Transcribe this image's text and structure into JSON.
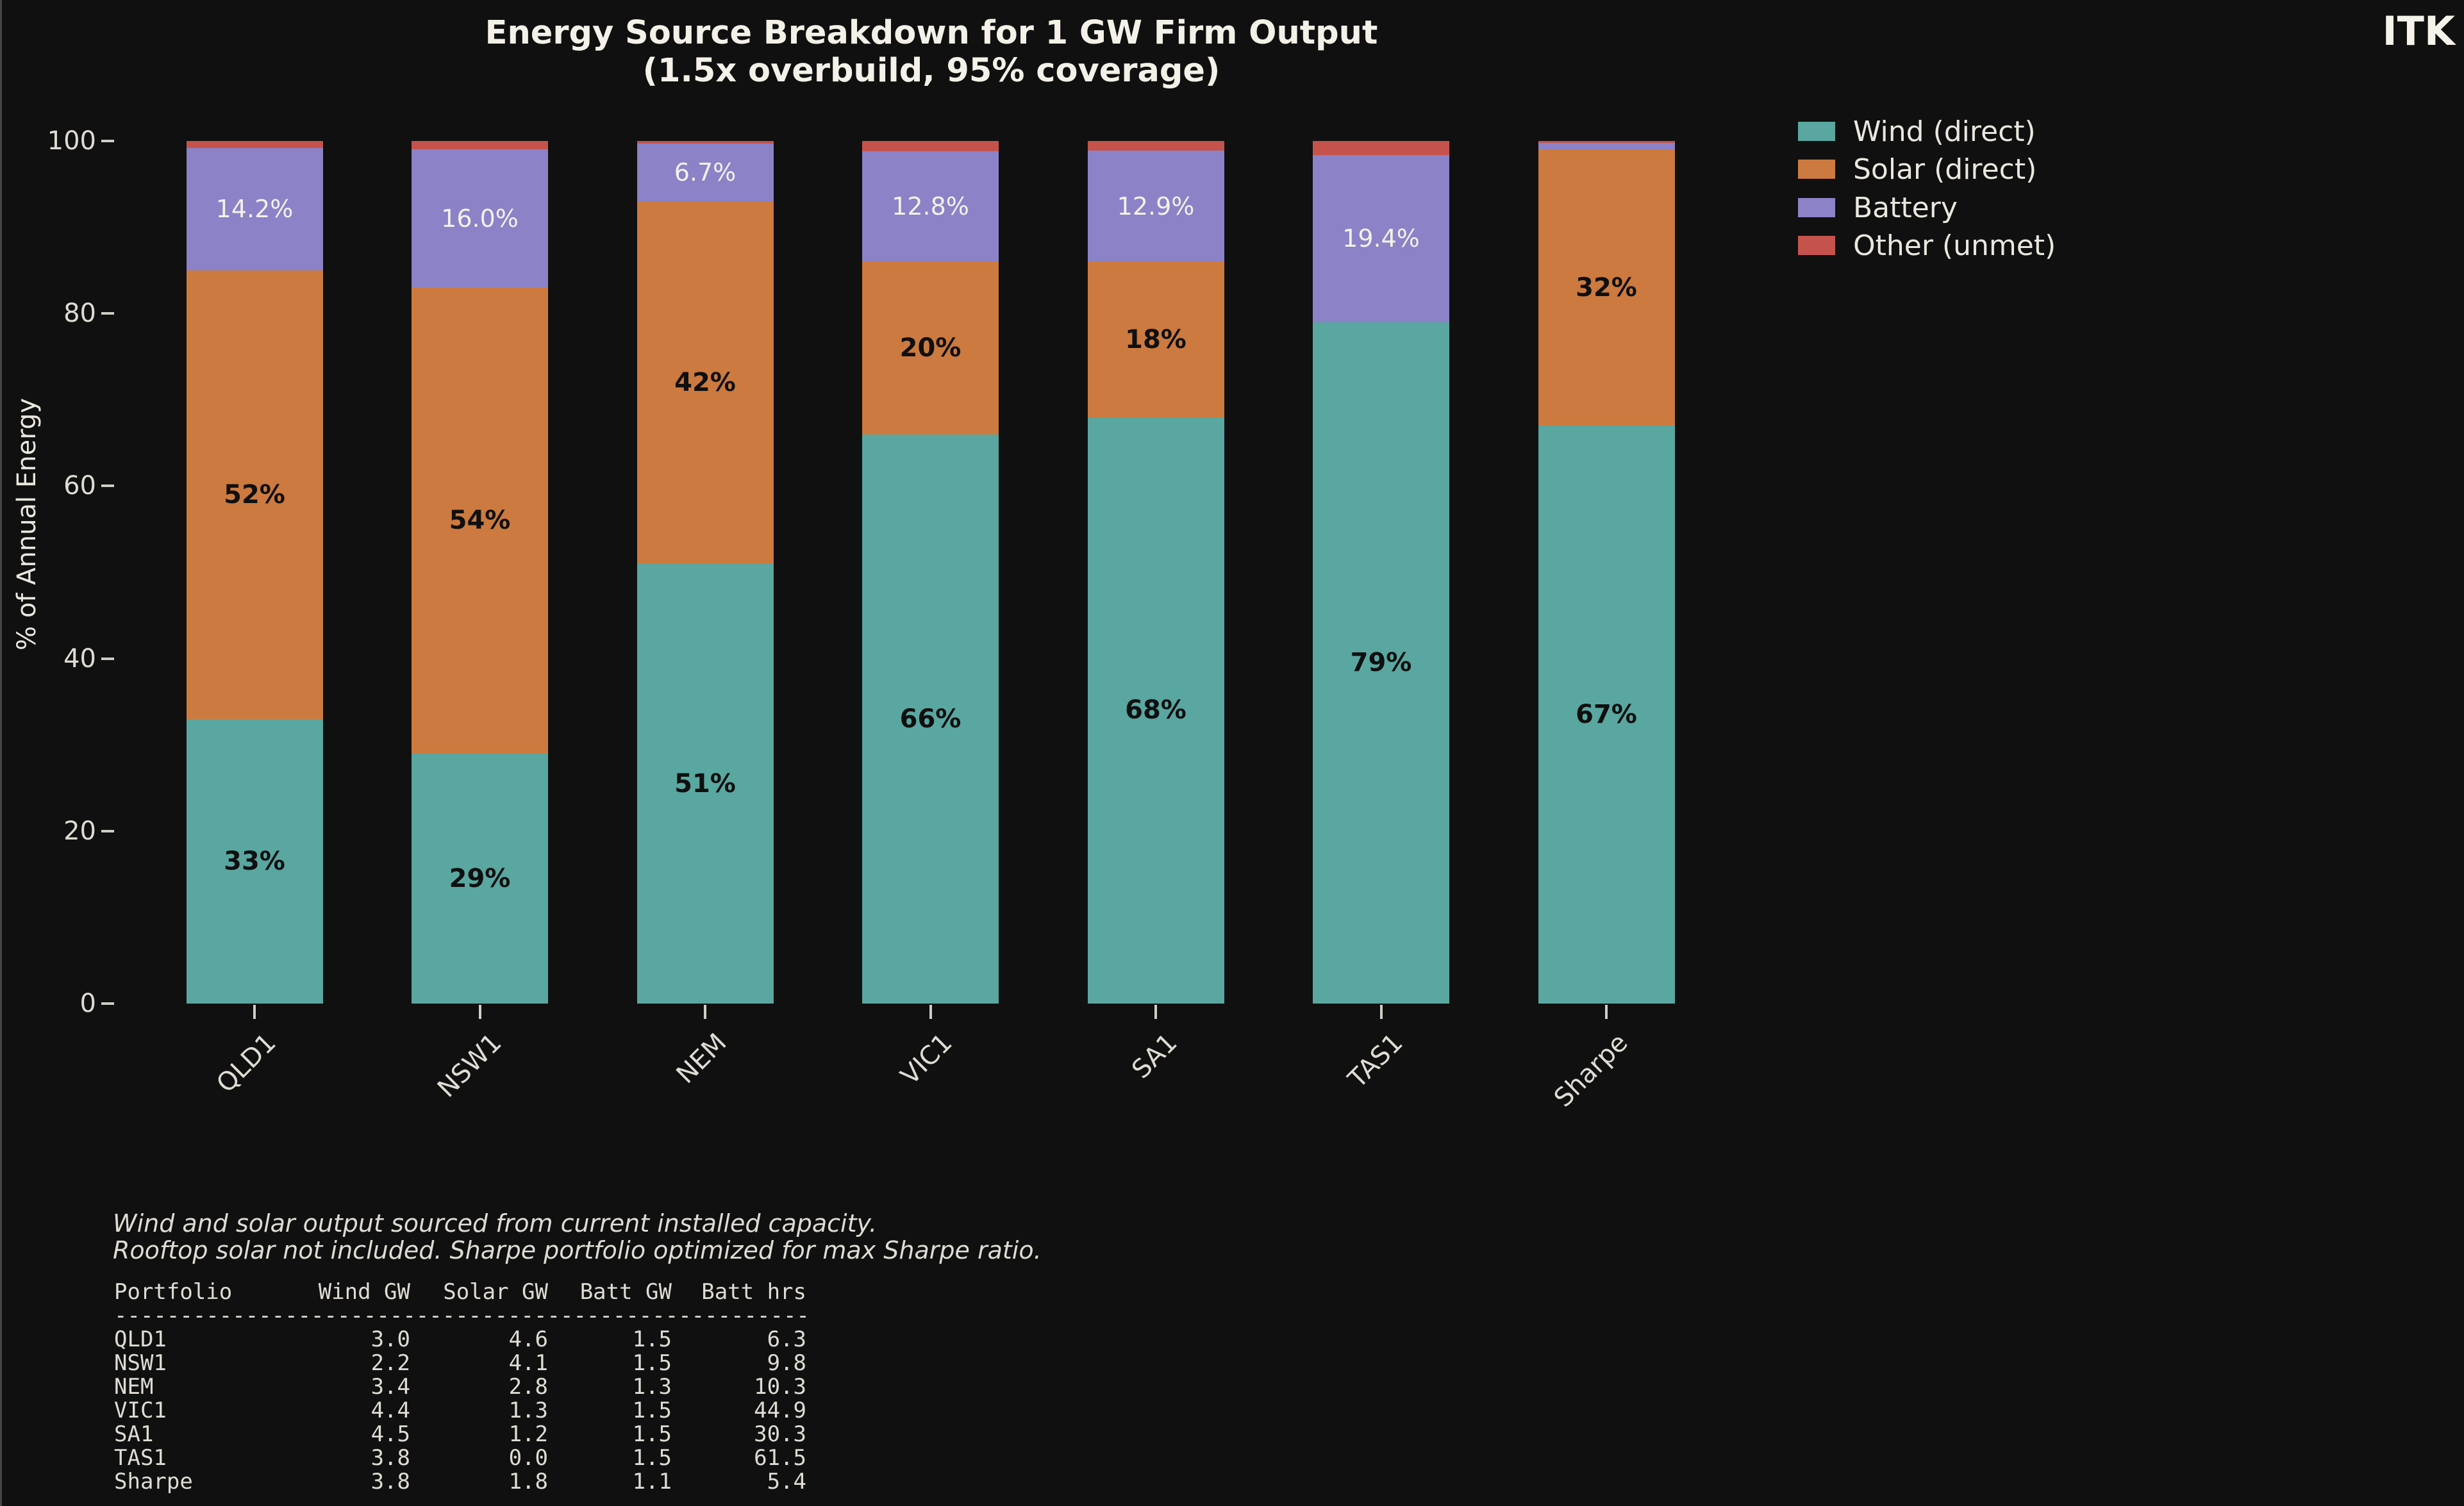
{
  "brand": {
    "logo_text": "ITK"
  },
  "chart_data": {
    "type": "bar",
    "stacked": true,
    "title": "Energy Source Breakdown for 1 GW Firm Output",
    "subtitle": "(1.5x overbuild, 95% coverage)",
    "ylabel": "% of Annual Energy",
    "ylim": [
      0,
      100
    ],
    "yticks": [
      0,
      20,
      40,
      60,
      80,
      100
    ],
    "grid": false,
    "legend_position": "upper right",
    "categories": [
      "QLD1",
      "NSW1",
      "NEM",
      "VIC1",
      "SA1",
      "TAS1",
      "Sharpe"
    ],
    "series": [
      {
        "name": "Wind (direct)",
        "color": "#59a7a0",
        "label_style": "dark-bold",
        "values": [
          33,
          29,
          51,
          66,
          68,
          79,
          67
        ],
        "labels": [
          "33%",
          "29%",
          "51%",
          "66%",
          "68%",
          "79%",
          "67%"
        ]
      },
      {
        "name": "Solar (direct)",
        "color": "#cc7a3f",
        "label_style": "dark-bold",
        "values": [
          52,
          54,
          42,
          20,
          18,
          0,
          32
        ],
        "labels": [
          "52%",
          "54%",
          "42%",
          "20%",
          "18%",
          null,
          "32%"
        ]
      },
      {
        "name": "Battery",
        "color": "#8b82c8",
        "label_style": "light",
        "values": [
          14.2,
          16.0,
          6.7,
          12.8,
          12.9,
          19.4,
          0.8
        ],
        "labels": [
          "14.2%",
          "16.0%",
          "6.7%",
          "12.8%",
          "12.9%",
          "19.4%",
          null
        ]
      },
      {
        "name": "Other (unmet)",
        "color": "#c5534c",
        "label_style": "none",
        "values": [
          0.8,
          1.0,
          0.3,
          1.2,
          1.1,
          1.6,
          0.2
        ],
        "labels": [
          null,
          null,
          null,
          null,
          null,
          null,
          null
        ]
      }
    ]
  },
  "footnote": {
    "line1": "Wind and solar output sourced from current installed capacity.",
    "line2": "Rooftop solar not included. Sharpe portfolio optimized for max Sharpe ratio."
  },
  "table": {
    "headers": [
      "Portfolio",
      "Wind GW",
      "Solar GW",
      "Batt GW",
      "Batt hrs"
    ],
    "separator": "-----------------------------------------------------",
    "rows": [
      [
        "QLD1",
        "3.0",
        "4.6",
        "1.5",
        "6.3"
      ],
      [
        "NSW1",
        "2.2",
        "4.1",
        "1.5",
        "9.8"
      ],
      [
        "NEM",
        "3.4",
        "2.8",
        "1.3",
        "10.3"
      ],
      [
        "VIC1",
        "4.4",
        "1.3",
        "1.5",
        "44.9"
      ],
      [
        "SA1",
        "4.5",
        "1.2",
        "1.5",
        "30.3"
      ],
      [
        "TAS1",
        "3.8",
        "0.0",
        "1.5",
        "61.5"
      ],
      [
        "Sharpe",
        "3.8",
        "1.8",
        "1.1",
        "5.4"
      ]
    ]
  }
}
